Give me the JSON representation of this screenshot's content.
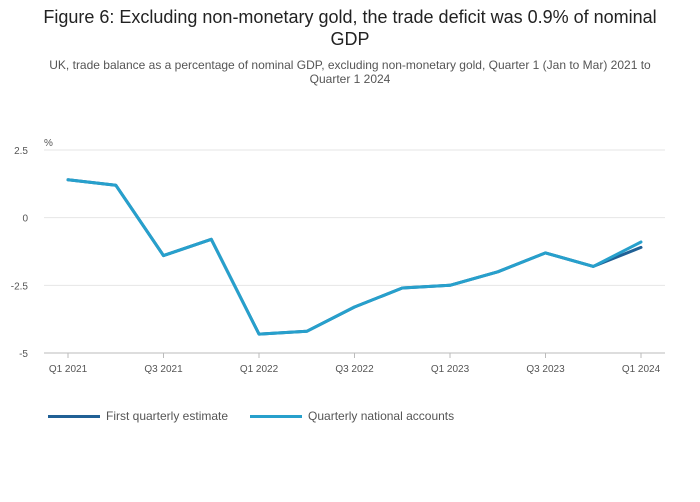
{
  "chart_data": {
    "type": "line",
    "title": "Figure 6: Excluding non-monetary gold, the trade deficit was 0.9% of nominal GDP",
    "subtitle": "UK, trade balance as a percentage of nominal GDP, excluding non-monetary gold, Quarter 1 (Jan to Mar) 2021 to Quarter 1 2024",
    "ylabel": "%",
    "ylim": [
      -5,
      2.5
    ],
    "yticks": [
      2.5,
      0,
      -2.5,
      -5
    ],
    "ytick_labels": [
      "2.5",
      "0",
      "-2.5",
      "-5"
    ],
    "categories": [
      "Q1 2021",
      "Q2 2021",
      "Q3 2021",
      "Q4 2021",
      "Q1 2022",
      "Q2 2022",
      "Q3 2022",
      "Q4 2022",
      "Q1 2023",
      "Q2 2023",
      "Q3 2023",
      "Q4 2023",
      "Q1 2024"
    ],
    "xtick_labels": [
      "Q1 2021",
      "Q3 2021",
      "Q1 2022",
      "Q3 2022",
      "Q1 2023",
      "Q3 2023",
      "Q1 2024"
    ],
    "series": [
      {
        "name": "First quarterly estimate",
        "color": "#206095",
        "values": [
          1.4,
          1.2,
          -1.4,
          -0.8,
          -4.3,
          -4.2,
          -3.3,
          -2.6,
          -2.5,
          -2.0,
          -1.3,
          -1.8,
          -1.1
        ]
      },
      {
        "name": "Quarterly national accounts",
        "color": "#27a0cc",
        "values": [
          1.4,
          1.2,
          -1.4,
          -0.8,
          -4.3,
          -4.2,
          -3.3,
          -2.6,
          -2.5,
          -2.0,
          -1.3,
          -1.8,
          -0.9
        ]
      }
    ],
    "legend_position": "bottom-left"
  }
}
